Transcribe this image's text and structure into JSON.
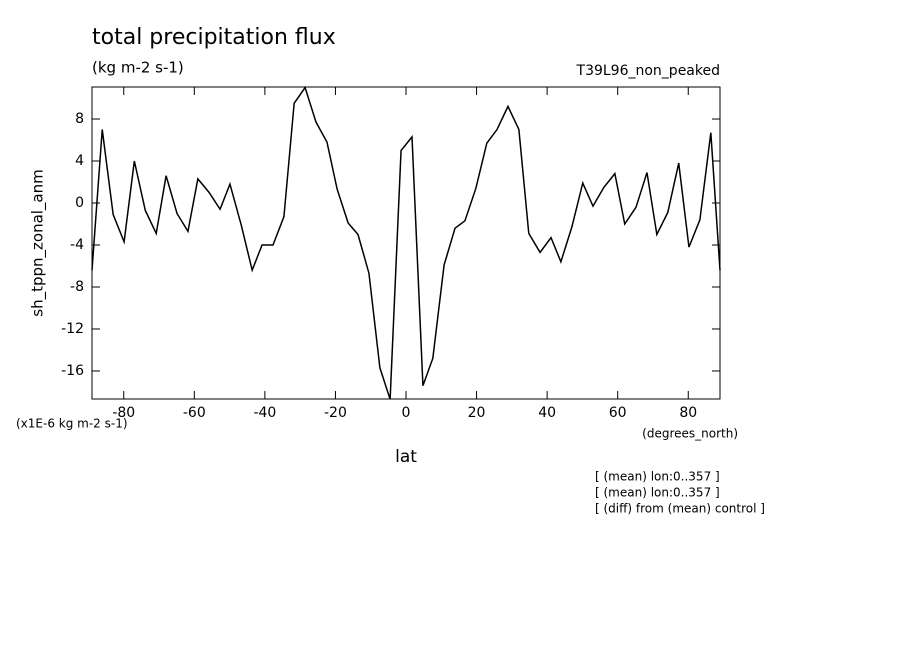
{
  "chart_data": {
    "type": "line",
    "title": "total precipitation flux",
    "subtitle": "(kg m-2 s-1)",
    "dataset": "T39L96_non_peaked",
    "y_label": "sh_tppn_zonal_anm",
    "y_units": "(x1E-6 kg m-2 s-1)",
    "x_label": "lat",
    "x_units": "(degrees_north)",
    "notes": [
      "[ (mean) lon:0..357 ]",
      "[ (mean) lon:0..357 ]",
      "[ (diff) from (mean) control ]"
    ],
    "x": [
      -89,
      -86.1,
      -83,
      -79.9,
      -77,
      -73.9,
      -70.8,
      -68,
      -64.9,
      -61.8,
      -59,
      -55.8,
      -52.7,
      -49.9,
      -46.7,
      -43.6,
      -40.8,
      -37.7,
      -34.6,
      -31.7,
      -28.6,
      -25.5,
      -22.4,
      -19.5,
      -16.4,
      -13.6,
      -10.5,
      -7.4,
      -4.5,
      -1.4,
      1.7,
      4.8,
      7.6,
      10.8,
      13.9,
      16.7,
      19.8,
      22.9,
      25.8,
      28.9,
      32,
      34.8,
      38,
      41.1,
      43.9,
      47,
      50.1,
      53,
      56.1,
      59.2,
      62,
      65.2,
      68.3,
      71.1,
      74.2,
      77.3,
      80.2,
      83.3,
      86.4,
      89
    ],
    "series": [
      {
        "name": "sh_tppn_zonal_anm",
        "color": "#000000",
        "values": [
          -6.4,
          7.0,
          -1.1,
          -3.7,
          4.0,
          -0.7,
          -2.9,
          2.6,
          -1.0,
          -2.7,
          2.3,
          1.0,
          -0.6,
          1.8,
          -2.1,
          -6.4,
          -4.0,
          -4.0,
          -1.3,
          9.5,
          11.0,
          7.7,
          5.8,
          1.3,
          -1.9,
          -3.0,
          -6.7,
          -15.7,
          -18.7,
          5.0,
          6.3,
          -17.4,
          -14.8,
          -5.9,
          -2.4,
          -1.7,
          1.4,
          5.7,
          7.0,
          9.2,
          7.0,
          -2.9,
          -4.7,
          -3.3,
          -5.6,
          -2.3,
          1.9,
          -0.3,
          1.5,
          2.8,
          -2.0,
          -0.4,
          2.9,
          -3.0,
          -0.9,
          3.8,
          -4.2,
          -1.6,
          6.7,
          -6.4
        ]
      }
    ],
    "xlim": [
      -89,
      89
    ],
    "xticks": [
      -80,
      -60,
      -40,
      -20,
      0,
      20,
      40,
      60,
      80
    ],
    "ylim": [
      -18.67,
      11.05
    ],
    "yticks": [
      -16,
      -12,
      -8,
      -4,
      0,
      4,
      8
    ]
  }
}
